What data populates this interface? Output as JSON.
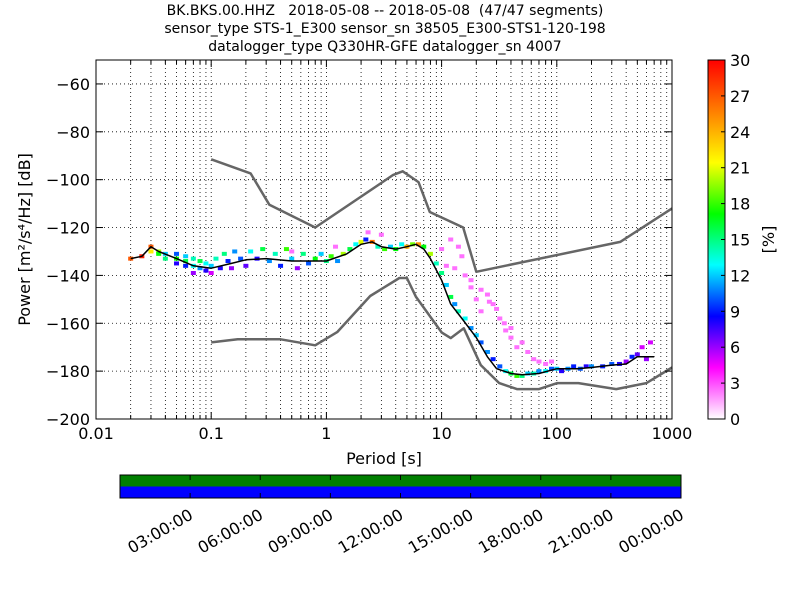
{
  "title_lines": [
    "BK.BKS.00.HHZ   2018-05-08 -- 2018-05-08  (47/47 segments)",
    "sensor_type STS-1_E300 sensor_sn 38505_E300-STS1-120-198",
    "datalogger_type Q330HR-GFE datalogger_sn 4007"
  ],
  "chart_data": [
    {
      "type": "heatmap",
      "title": "BK.BKS.00.HHZ   2018-05-08 -- 2018-05-08  (47/47 segments)",
      "xlabel": "Period [s]",
      "ylabel": "Power [m²/s⁴/Hz] [dB]",
      "xscale": "log",
      "xlim": [
        0.01,
        1000
      ],
      "ylim": [
        -200,
        -50
      ],
      "x_ticks": [
        0.01,
        0.1,
        1,
        10,
        100,
        1000
      ],
      "x_tick_labels": [
        "0.01",
        "0.1",
        "1",
        "10",
        "100",
        "1000"
      ],
      "y_ticks": [
        -200,
        -180,
        -160,
        -140,
        -120,
        -100,
        -80,
        -60
      ],
      "y_tick_labels": [
        "−200",
        "−180",
        "−160",
        "−140",
        "−120",
        "−100",
        "−80",
        "−60"
      ],
      "grid": true,
      "colorbar": {
        "label": "[%]",
        "range": [
          0,
          30
        ],
        "ticks": [
          0,
          3,
          6,
          9,
          12,
          15,
          18,
          21,
          24,
          27,
          30
        ],
        "colormap": [
          "#ffffff",
          "#ff00ff",
          "#0000ff",
          "#00ffff",
          "#00ff00",
          "#ffff00",
          "#ff7f00",
          "#ff0000"
        ]
      },
      "series": [
        {
          "name": "",
          "role": "noise-model-upper",
          "color": "#666666",
          "x": [
            0.1,
            0.22,
            0.32,
            0.8,
            3.8,
            4.6,
            6.3,
            7.9,
            15.4,
            20,
            354.8,
            1000
          ],
          "y": [
            -91.5,
            -97.4,
            -110.5,
            -120,
            -98,
            -96.5,
            -101,
            -113.5,
            -120,
            -138.5,
            -126,
            -112
          ]
        },
        {
          "name": "",
          "role": "noise-model-lower",
          "color": "#666666",
          "x": [
            0.1,
            0.17,
            0.4,
            0.8,
            1.24,
            2.4,
            4.3,
            5,
            6,
            10,
            12,
            15.6,
            21.9,
            31.6,
            45,
            70,
            101,
            154,
            328,
            600,
            1000
          ],
          "y": [
            -168,
            -166.7,
            -166.7,
            -169.2,
            -163.7,
            -148.6,
            -141.1,
            -141.1,
            -149,
            -163.8,
            -166.2,
            -162.1,
            -177.5,
            -185,
            -187.5,
            -187.5,
            -185,
            -185,
            -187.5,
            -185,
            -178.5
          ]
        },
        {
          "name": "",
          "role": "mode-psd",
          "color": "#000000",
          "x": [
            0.02,
            0.025,
            0.03,
            0.035,
            0.05,
            0.07,
            0.1,
            0.15,
            0.2,
            0.3,
            0.5,
            0.7,
            1,
            1.5,
            2,
            2.5,
            3,
            4,
            5,
            6,
            7,
            8,
            10,
            12,
            15,
            20,
            25,
            30,
            40,
            50,
            70,
            100,
            150,
            200,
            300,
            400,
            500,
            700
          ],
          "y": [
            -133,
            -132,
            -128,
            -130,
            -133,
            -136,
            -137,
            -135,
            -133.5,
            -133,
            -134,
            -134,
            -134,
            -131,
            -127,
            -126,
            -128,
            -129,
            -128,
            -127,
            -129,
            -133,
            -142,
            -152,
            -158,
            -166,
            -174,
            -179,
            -181,
            -181.5,
            -181,
            -179,
            -179,
            -178.5,
            -177.5,
            -177,
            -174,
            -174
          ]
        }
      ],
      "histogram_percent_cells": [
        {
          "x": 0.02,
          "y": -133,
          "pct": 27
        },
        {
          "x": 0.025,
          "y": -132,
          "pct": 29
        },
        {
          "x": 0.03,
          "y": -128,
          "pct": 27
        },
        {
          "x": 0.03,
          "y": -130,
          "pct": 22
        },
        {
          "x": 0.035,
          "y": -130,
          "pct": 20
        },
        {
          "x": 0.035,
          "y": -131,
          "pct": 17
        },
        {
          "x": 0.04,
          "y": -131,
          "pct": 12
        },
        {
          "x": 0.04,
          "y": -133,
          "pct": 15
        },
        {
          "x": 0.05,
          "y": -131,
          "pct": 10
        },
        {
          "x": 0.05,
          "y": -133,
          "pct": 17
        },
        {
          "x": 0.05,
          "y": -135,
          "pct": 8
        },
        {
          "x": 0.06,
          "y": -132,
          "pct": 12
        },
        {
          "x": 0.06,
          "y": -134,
          "pct": 16
        },
        {
          "x": 0.06,
          "y": -136,
          "pct": 9
        },
        {
          "x": 0.07,
          "y": -133,
          "pct": 14
        },
        {
          "x": 0.07,
          "y": -136,
          "pct": 13
        },
        {
          "x": 0.07,
          "y": -139,
          "pct": 6
        },
        {
          "x": 0.08,
          "y": -134,
          "pct": 16
        },
        {
          "x": 0.08,
          "y": -137,
          "pct": 11
        },
        {
          "x": 0.09,
          "y": -135,
          "pct": 13
        },
        {
          "x": 0.09,
          "y": -138,
          "pct": 8
        },
        {
          "x": 0.1,
          "y": -136,
          "pct": 12
        },
        {
          "x": 0.1,
          "y": -139,
          "pct": 5
        },
        {
          "x": 0.11,
          "y": -133,
          "pct": 14
        },
        {
          "x": 0.12,
          "y": -137,
          "pct": 8
        },
        {
          "x": 0.13,
          "y": -131,
          "pct": 15
        },
        {
          "x": 0.14,
          "y": -134,
          "pct": 9
        },
        {
          "x": 0.15,
          "y": -137,
          "pct": 6
        },
        {
          "x": 0.16,
          "y": -130,
          "pct": 11
        },
        {
          "x": 0.18,
          "y": -133,
          "pct": 10
        },
        {
          "x": 0.2,
          "y": -136,
          "pct": 7
        },
        {
          "x": 0.22,
          "y": -130,
          "pct": 13
        },
        {
          "x": 0.25,
          "y": -133,
          "pct": 8
        },
        {
          "x": 0.28,
          "y": -129,
          "pct": 16
        },
        {
          "x": 0.32,
          "y": -134,
          "pct": 11
        },
        {
          "x": 0.36,
          "y": -131,
          "pct": 14
        },
        {
          "x": 0.4,
          "y": -136,
          "pct": 9
        },
        {
          "x": 0.45,
          "y": -129,
          "pct": 18
        },
        {
          "x": 0.5,
          "y": -133,
          "pct": 12
        },
        {
          "x": 0.56,
          "y": -137,
          "pct": 6
        },
        {
          "x": 0.63,
          "y": -131,
          "pct": 15
        },
        {
          "x": 0.7,
          "y": -135,
          "pct": 10
        },
        {
          "x": 0.8,
          "y": -133,
          "pct": 17
        },
        {
          "x": 0.9,
          "y": -131,
          "pct": 12
        },
        {
          "x": 1,
          "y": -134,
          "pct": 15
        },
        {
          "x": 1.1,
          "y": -132,
          "pct": 18
        },
        {
          "x": 1.25,
          "y": -134,
          "pct": 11
        },
        {
          "x": 1.4,
          "y": -131,
          "pct": 20
        },
        {
          "x": 1.6,
          "y": -129,
          "pct": 16
        },
        {
          "x": 1.8,
          "y": -127,
          "pct": 13
        },
        {
          "x": 2,
          "y": -126,
          "pct": 21
        },
        {
          "x": 2.2,
          "y": -125,
          "pct": 9
        },
        {
          "x": 2.5,
          "y": -126,
          "pct": 26
        },
        {
          "x": 2.8,
          "y": -128,
          "pct": 14
        },
        {
          "x": 3.2,
          "y": -129,
          "pct": 18
        },
        {
          "x": 3.6,
          "y": -128,
          "pct": 12
        },
        {
          "x": 4,
          "y": -129,
          "pct": 17
        },
        {
          "x": 4.5,
          "y": -127,
          "pct": 13
        },
        {
          "x": 5,
          "y": -128,
          "pct": 24
        },
        {
          "x": 5.6,
          "y": -127,
          "pct": 19
        },
        {
          "x": 6.3,
          "y": -127,
          "pct": 25
        },
        {
          "x": 7,
          "y": -128,
          "pct": 17
        },
        {
          "x": 8,
          "y": -131,
          "pct": 20
        },
        {
          "x": 9,
          "y": -135,
          "pct": 14
        },
        {
          "x": 10,
          "y": -139,
          "pct": 15
        },
        {
          "x": 11,
          "y": -144,
          "pct": 12
        },
        {
          "x": 12,
          "y": -149,
          "pct": 16
        },
        {
          "x": 13,
          "y": -152,
          "pct": 11
        },
        {
          "x": 14,
          "y": -155,
          "pct": 14
        },
        {
          "x": 16,
          "y": -158,
          "pct": 13
        },
        {
          "x": 18,
          "y": -162,
          "pct": 11
        },
        {
          "x": 20,
          "y": -165,
          "pct": 12
        },
        {
          "x": 22,
          "y": -168,
          "pct": 10
        },
        {
          "x": 25,
          "y": -172,
          "pct": 11
        },
        {
          "x": 28,
          "y": -175,
          "pct": 9
        },
        {
          "x": 32,
          "y": -178,
          "pct": 10
        },
        {
          "x": 36,
          "y": -180,
          "pct": 13
        },
        {
          "x": 40,
          "y": -181,
          "pct": 16
        },
        {
          "x": 45,
          "y": -182,
          "pct": 18
        },
        {
          "x": 50,
          "y": -182,
          "pct": 15
        },
        {
          "x": 56,
          "y": -181,
          "pct": 12
        },
        {
          "x": 63,
          "y": -181,
          "pct": 14
        },
        {
          "x": 70,
          "y": -180,
          "pct": 11
        },
        {
          "x": 80,
          "y": -180,
          "pct": 13
        },
        {
          "x": 90,
          "y": -179,
          "pct": 10
        },
        {
          "x": 100,
          "y": -179,
          "pct": 12
        },
        {
          "x": 110,
          "y": -180,
          "pct": 8
        },
        {
          "x": 125,
          "y": -179,
          "pct": 11
        },
        {
          "x": 140,
          "y": -178,
          "pct": 9
        },
        {
          "x": 160,
          "y": -179,
          "pct": 10
        },
        {
          "x": 180,
          "y": -178,
          "pct": 8
        },
        {
          "x": 200,
          "y": -178,
          "pct": 11
        },
        {
          "x": 250,
          "y": -178,
          "pct": 9
        },
        {
          "x": 300,
          "y": -177,
          "pct": 10
        },
        {
          "x": 350,
          "y": -177,
          "pct": 8
        },
        {
          "x": 400,
          "y": -176,
          "pct": 6
        },
        {
          "x": 450,
          "y": -174,
          "pct": 9
        },
        {
          "x": 500,
          "y": -173,
          "pct": 7
        },
        {
          "x": 550,
          "y": -170,
          "pct": 5
        },
        {
          "x": 600,
          "y": -175,
          "pct": 6
        },
        {
          "x": 650,
          "y": -168,
          "pct": 5
        }
      ],
      "histogram_faint_cells": [
        {
          "x": 12,
          "y": -125
        },
        {
          "x": 14,
          "y": -128
        },
        {
          "x": 15,
          "y": -132
        },
        {
          "x": 13,
          "y": -137
        },
        {
          "x": 16,
          "y": -140
        },
        {
          "x": 18,
          "y": -145
        },
        {
          "x": 20,
          "y": -150
        },
        {
          "x": 22,
          "y": -155
        },
        {
          "x": 25,
          "y": -148
        },
        {
          "x": 28,
          "y": -152
        },
        {
          "x": 32,
          "y": -158
        },
        {
          "x": 36,
          "y": -163
        },
        {
          "x": 40,
          "y": -166
        },
        {
          "x": 45,
          "y": -170
        },
        {
          "x": 50,
          "y": -168
        },
        {
          "x": 56,
          "y": -172
        },
        {
          "x": 63,
          "y": -175
        },
        {
          "x": 70,
          "y": -176
        },
        {
          "x": 80,
          "y": -177
        },
        {
          "x": 90,
          "y": -176
        },
        {
          "x": 18,
          "y": -142
        },
        {
          "x": 22,
          "y": -146
        },
        {
          "x": 26,
          "y": -151
        },
        {
          "x": 30,
          "y": -154
        },
        {
          "x": 35,
          "y": -160
        },
        {
          "x": 40,
          "y": -162
        },
        {
          "x": 10,
          "y": -129
        },
        {
          "x": 11,
          "y": -136
        },
        {
          "x": 0.5,
          "y": -130
        },
        {
          "x": 1.2,
          "y": -128
        },
        {
          "x": 2.3,
          "y": -122
        },
        {
          "x": 3,
          "y": -123
        }
      ],
      "time_coverage": {
        "tick_labels": [
          "03:00:00",
          "06:00:00",
          "09:00:00",
          "12:00:00",
          "15:00:00",
          "18:00:00",
          "21:00:00",
          "00:00:00"
        ],
        "bars": [
          {
            "name": "data",
            "color": "#007f00",
            "coverage": [
              0,
              1
            ]
          },
          {
            "name": "psd",
            "color": "#0000ff",
            "coverage": [
              0,
              1
            ]
          }
        ]
      }
    }
  ]
}
